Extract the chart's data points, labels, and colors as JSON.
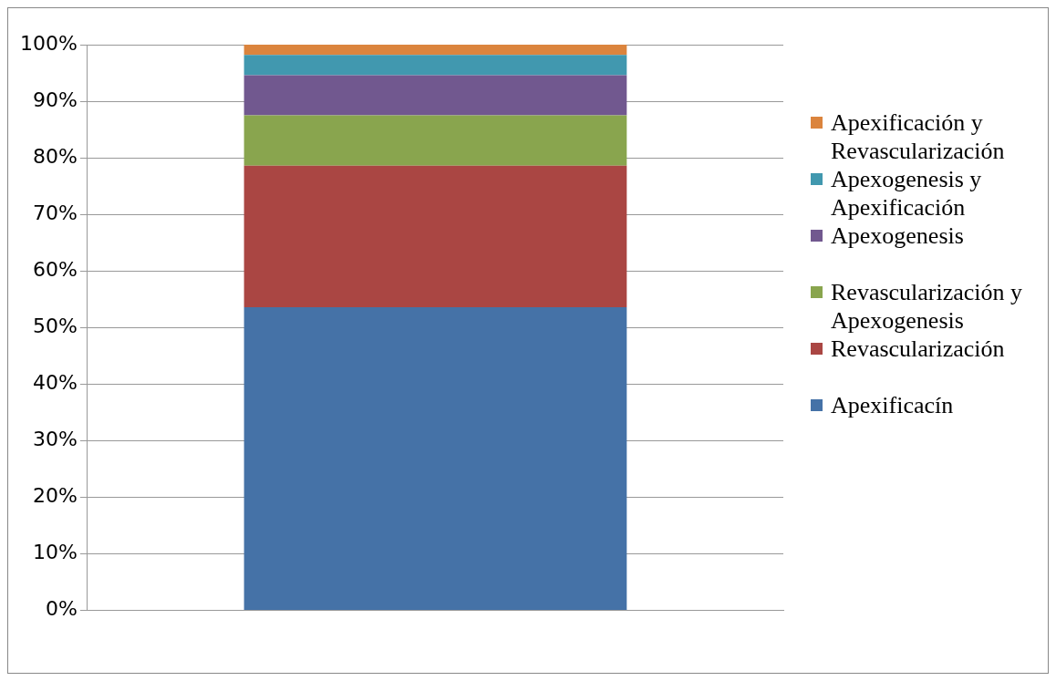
{
  "chart_data": {
    "type": "bar",
    "stacked": true,
    "categories": [
      null
    ],
    "series": [
      {
        "name": "Apexificacín",
        "color": "#4572a7",
        "values": [
          53.6
        ]
      },
      {
        "name": "Revascularización",
        "color": "#aa4643",
        "values": [
          25
        ]
      },
      {
        "name": "Revascularización y Apexogenesis",
        "color": "#89a54e",
        "values": [
          8.9
        ]
      },
      {
        "name": "Apexogenesis",
        "color": "#71588f",
        "values": [
          7.1
        ]
      },
      {
        "name": "Apexogenesis y Apexificación",
        "color": "#4198af",
        "values": [
          3.6
        ]
      },
      {
        "name": "Apexificación y Revascularización",
        "color": "#db843d",
        "values": [
          1.8
        ]
      }
    ],
    "ylim": [
      0,
      100
    ],
    "yticks": [
      {
        "value": 0,
        "label": "0%"
      },
      {
        "value": 10,
        "label": "10%"
      },
      {
        "value": 20,
        "label": "20%"
      },
      {
        "value": 30,
        "label": "30%"
      },
      {
        "value": 40,
        "label": "40%"
      },
      {
        "value": 50,
        "label": "50%"
      },
      {
        "value": 60,
        "label": "60%"
      },
      {
        "value": 70,
        "label": "70%"
      },
      {
        "value": 80,
        "label": "80%"
      },
      {
        "value": 90,
        "label": "90%"
      },
      {
        "value": 100,
        "label": "100%"
      }
    ],
    "grid": "y",
    "legend": "right"
  }
}
